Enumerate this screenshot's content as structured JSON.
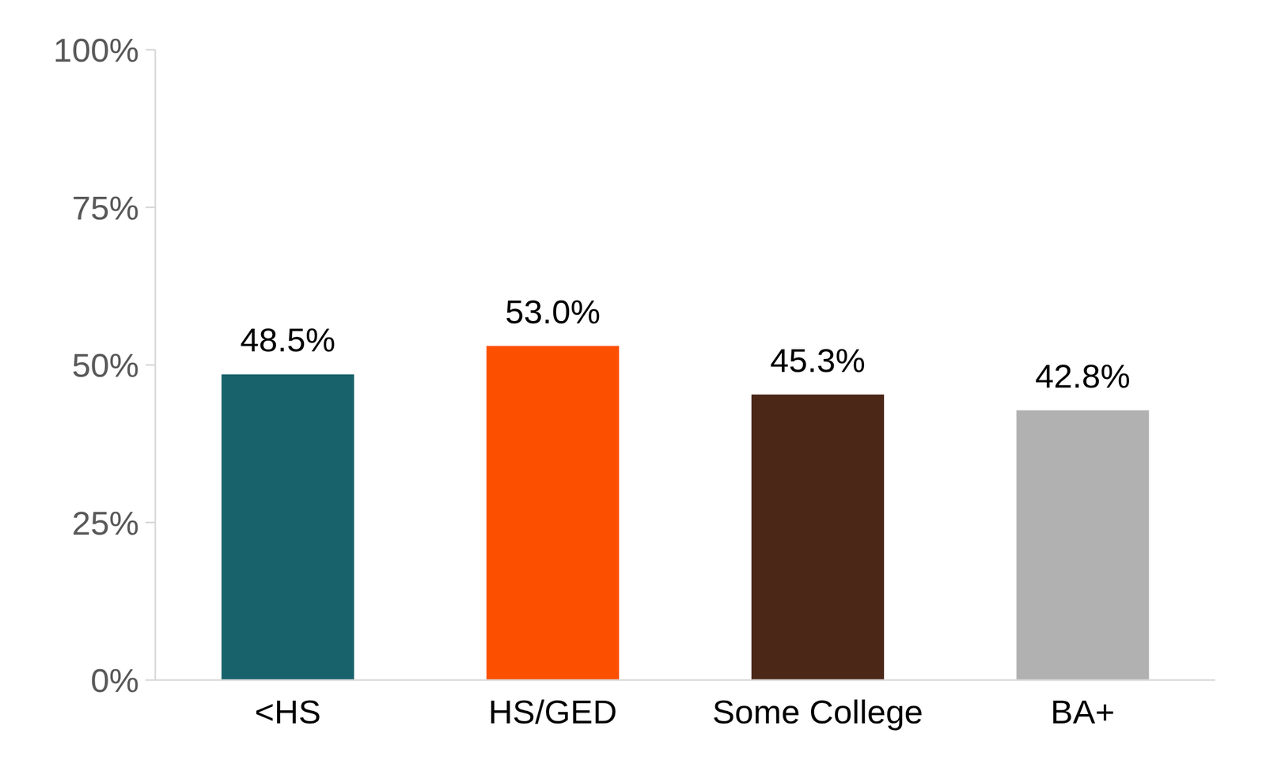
{
  "chart_data": {
    "type": "bar",
    "categories": [
      "<HS",
      "HS/GED",
      "Some College",
      "BA+"
    ],
    "values": [
      48.5,
      53.0,
      45.3,
      42.8
    ],
    "value_labels": [
      "48.5%",
      "53.0%",
      "45.3%",
      "42.8%"
    ],
    "colors": [
      "#17626b",
      "#fc4f00",
      "#4b2718",
      "#b1b1b1"
    ],
    "ylim": [
      0,
      100
    ],
    "yticks": [
      {
        "value": 0,
        "label": "0%"
      },
      {
        "value": 25,
        "label": "25%"
      },
      {
        "value": 50,
        "label": "50%"
      },
      {
        "value": 75,
        "label": "75%"
      },
      {
        "value": 100,
        "label": "100%"
      }
    ],
    "grid": false,
    "data_labels": true
  }
}
